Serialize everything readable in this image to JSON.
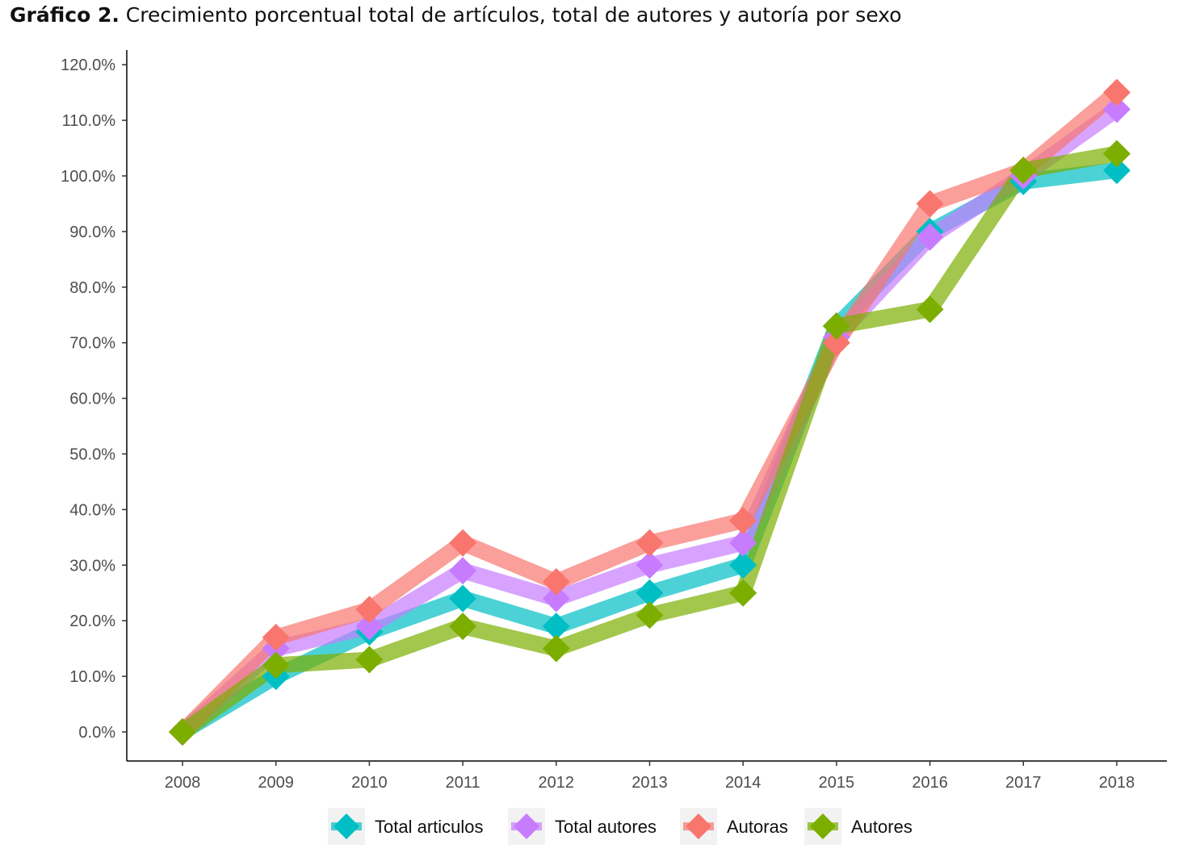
{
  "title": {
    "prefix": "Gráfico 2.",
    "text": "Crecimiento porcentual total de artículos, total de autores y autoría por sexo"
  },
  "chart_data": {
    "type": "line",
    "x": [
      "2008",
      "2009",
      "2010",
      "2011",
      "2012",
      "2013",
      "2014",
      "2015",
      "2016",
      "2017",
      "2018"
    ],
    "y_ticks": [
      "0.0%",
      "10.0%",
      "20.0%",
      "30.0%",
      "40.0%",
      "50.0%",
      "60.0%",
      "70.0%",
      "80.0%",
      "90.0%",
      "100.0%",
      "110.0%",
      "120.0%"
    ],
    "ylim": [
      -5,
      120
    ],
    "grid": false,
    "legend_position": "bottom",
    "series": [
      {
        "name": "Total articulos",
        "color": "#00bfc4",
        "marker": "diamond",
        "values": [
          0,
          10,
          18,
          24,
          19,
          25,
          30,
          73,
          90,
          99,
          101
        ]
      },
      {
        "name": "Total autores",
        "color": "#c77cff",
        "marker": "diamond",
        "values": [
          0,
          15,
          19,
          29,
          24,
          30,
          34,
          71,
          89,
          100,
          112
        ]
      },
      {
        "name": "Autoras",
        "color": "#f8766d",
        "marker": "diamond",
        "values": [
          0,
          17,
          22,
          34,
          27,
          34,
          38,
          70,
          95,
          101,
          115
        ]
      },
      {
        "name": "Autores",
        "color": "#7cae00",
        "marker": "diamond",
        "values": [
          0,
          12,
          13,
          19,
          15,
          21,
          25,
          73,
          76,
          101,
          104
        ]
      }
    ]
  }
}
